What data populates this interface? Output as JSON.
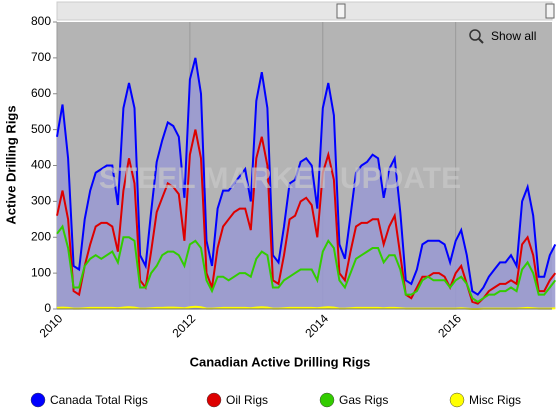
{
  "chart_data": {
    "type": "line",
    "xlabel": "Canadian Active Drilling Rigs",
    "ylabel": "Active Drilling Rigs",
    "watermark": "STEEL MARKET UPDATE",
    "button": "Show all",
    "xlim": [
      2010,
      2017.45
    ],
    "xticks": [
      2010,
      2012,
      2014,
      2016
    ],
    "ylim": [
      0,
      800
    ],
    "yticks": [
      0,
      100,
      200,
      300,
      400,
      500,
      600,
      700,
      800
    ],
    "grid": true,
    "legend": "bottom",
    "x": [
      2010.0,
      2010.083,
      2010.167,
      2010.25,
      2010.333,
      2010.417,
      2010.5,
      2010.583,
      2010.667,
      2010.75,
      2010.833,
      2010.917,
      2011.0,
      2011.083,
      2011.167,
      2011.25,
      2011.333,
      2011.417,
      2011.5,
      2011.583,
      2011.667,
      2011.75,
      2011.833,
      2011.917,
      2012.0,
      2012.083,
      2012.167,
      2012.25,
      2012.333,
      2012.417,
      2012.5,
      2012.583,
      2012.667,
      2012.75,
      2012.833,
      2012.917,
      2013.0,
      2013.083,
      2013.167,
      2013.25,
      2013.333,
      2013.417,
      2013.5,
      2013.583,
      2013.667,
      2013.75,
      2013.833,
      2013.917,
      2014.0,
      2014.083,
      2014.167,
      2014.25,
      2014.333,
      2014.417,
      2014.5,
      2014.583,
      2014.667,
      2014.75,
      2014.833,
      2014.917,
      2015.0,
      2015.083,
      2015.167,
      2015.25,
      2015.333,
      2015.417,
      2015.5,
      2015.583,
      2015.667,
      2015.75,
      2015.833,
      2015.917,
      2016.0,
      2016.083,
      2016.167,
      2016.25,
      2016.333,
      2016.417,
      2016.5,
      2016.583,
      2016.667,
      2016.75,
      2016.833,
      2016.917,
      2017.0,
      2017.083,
      2017.167,
      2017.25,
      2017.333,
      2017.417,
      2017.5
    ],
    "series": [
      {
        "name": "Canada Total Rigs",
        "color": "#0000ff",
        "fill": "#9a9ad0",
        "values": [
          480,
          570,
          420,
          120,
          110,
          250,
          330,
          380,
          390,
          400,
          400,
          290,
          560,
          630,
          560,
          150,
          120,
          270,
          410,
          470,
          520,
          510,
          480,
          310,
          640,
          700,
          600,
          190,
          120,
          280,
          330,
          330,
          350,
          370,
          390,
          300,
          580,
          660,
          560,
          150,
          130,
          230,
          350,
          360,
          410,
          420,
          400,
          280,
          560,
          630,
          540,
          180,
          140,
          260,
          380,
          400,
          410,
          430,
          420,
          310,
          390,
          420,
          270,
          80,
          70,
          110,
          180,
          190,
          190,
          190,
          180,
          130,
          190,
          220,
          150,
          50,
          40,
          60,
          90,
          110,
          130,
          130,
          150,
          120,
          300,
          340,
          260,
          90,
          90,
          150,
          180
        ]
      },
      {
        "name": "Oil Rigs",
        "color": "#dd0000",
        "values": [
          260,
          330,
          250,
          50,
          40,
          120,
          180,
          230,
          240,
          240,
          230,
          160,
          330,
          420,
          350,
          80,
          60,
          160,
          270,
          310,
          350,
          340,
          320,
          190,
          430,
          500,
          420,
          100,
          60,
          170,
          230,
          250,
          270,
          280,
          280,
          220,
          420,
          480,
          400,
          80,
          70,
          150,
          250,
          260,
          300,
          310,
          290,
          200,
          380,
          430,
          360,
          100,
          80,
          160,
          230,
          240,
          240,
          250,
          250,
          180,
          230,
          260,
          150,
          40,
          30,
          60,
          90,
          90,
          100,
          100,
          90,
          60,
          100,
          120,
          70,
          20,
          15,
          30,
          50,
          60,
          70,
          70,
          80,
          70,
          180,
          200,
          150,
          50,
          50,
          80,
          100
        ]
      },
      {
        "name": "Gas Rigs",
        "color": "#33cc00",
        "values": [
          210,
          230,
          170,
          60,
          60,
          120,
          140,
          150,
          140,
          150,
          160,
          130,
          200,
          200,
          190,
          60,
          60,
          100,
          120,
          150,
          160,
          160,
          150,
          120,
          180,
          190,
          170,
          80,
          50,
          90,
          90,
          80,
          90,
          100,
          100,
          90,
          140,
          160,
          150,
          60,
          60,
          80,
          90,
          100,
          110,
          110,
          110,
          80,
          160,
          190,
          170,
          80,
          60,
          100,
          140,
          150,
          160,
          170,
          170,
          130,
          150,
          150,
          110,
          40,
          40,
          50,
          80,
          90,
          80,
          80,
          80,
          60,
          80,
          90,
          70,
          30,
          20,
          30,
          40,
          40,
          50,
          50,
          60,
          50,
          110,
          130,
          100,
          40,
          40,
          60,
          80
        ]
      },
      {
        "name": "Misc Rigs",
        "color": "#ffff00",
        "values": [
          3,
          4,
          3,
          1,
          1,
          2,
          3,
          3,
          3,
          3,
          3,
          2,
          4,
          5,
          4,
          1,
          1,
          2,
          3,
          3,
          4,
          4,
          3,
          2,
          5,
          6,
          5,
          1,
          1,
          2,
          3,
          3,
          3,
          3,
          3,
          2,
          4,
          5,
          4,
          1,
          1,
          2,
          3,
          3,
          3,
          3,
          3,
          2,
          4,
          5,
          4,
          1,
          1,
          2,
          3,
          3,
          3,
          3,
          3,
          2,
          3,
          3,
          2,
          1,
          1,
          1,
          1,
          1,
          1,
          1,
          1,
          1,
          1,
          2,
          1,
          0,
          0,
          1,
          1,
          1,
          1,
          1,
          1,
          1,
          2,
          3,
          2,
          1,
          1,
          1,
          2
        ]
      }
    ]
  }
}
